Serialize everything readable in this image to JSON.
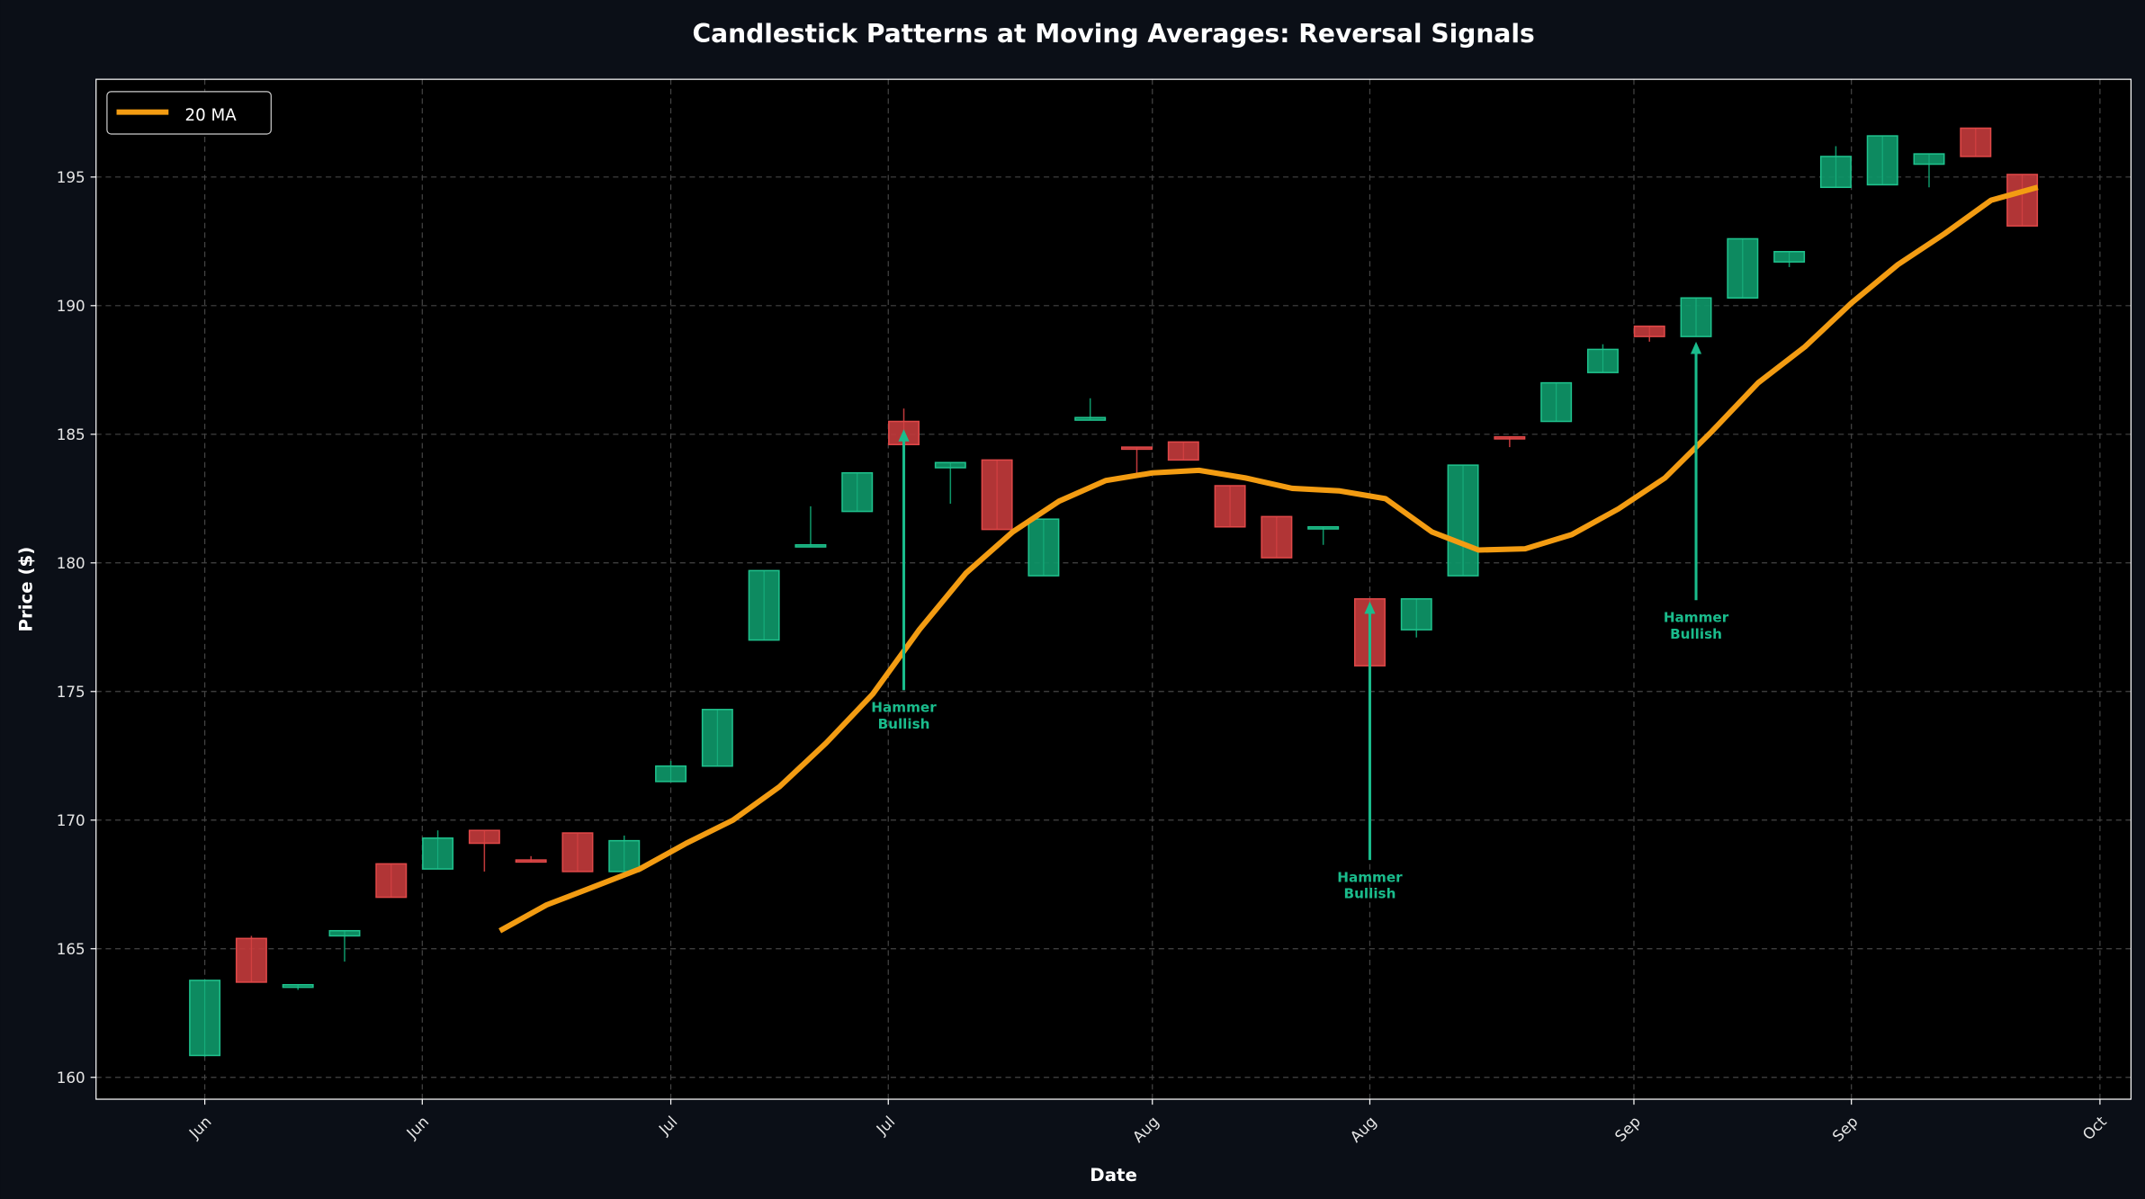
{
  "chart_data": {
    "type": "candlestick",
    "title": "Candlestick Patterns at Moving Averages: Reversal Signals",
    "xlabel": "Date",
    "ylabel": "Price ($)",
    "ylim": [
      159.15,
      198.8
    ],
    "xlim": [
      "May 25",
      "Oct 3"
    ],
    "grid": true,
    "legend_position": "top-left",
    "y_ticks": [
      160,
      165,
      170,
      175,
      180,
      185,
      190,
      195
    ],
    "x_ticks": [
      {
        "date": "Jun 1",
        "label": "Jun"
      },
      {
        "date": "Jun 15",
        "label": "Jun"
      },
      {
        "date": "Jul 1",
        "label": "Jul"
      },
      {
        "date": "Jul 15",
        "label": "Jul"
      },
      {
        "date": "Aug 1",
        "label": "Aug"
      },
      {
        "date": "Aug 15",
        "label": "Aug"
      },
      {
        "date": "Sep 1",
        "label": "Sep"
      },
      {
        "date": "Sep 15",
        "label": "Sep"
      },
      {
        "date": "Oct 1",
        "label": "Oct"
      }
    ],
    "colors": {
      "up": "#0e9668",
      "up_edge": "#1fc28d",
      "down": "#c0393b",
      "down_edge": "#e04848",
      "ma": "#f39c12",
      "annotation": "#1abc8c",
      "plot_bg": "#000000",
      "figure_bg": "#0b0f17"
    },
    "candles": [
      {
        "date": "Jun 1",
        "o": 160.85,
        "h": 163.8,
        "l": 160.8,
        "c": 163.77
      },
      {
        "date": "Jun 4",
        "o": 165.4,
        "h": 165.5,
        "l": 163.7,
        "c": 163.7
      },
      {
        "date": "Jun 7",
        "o": 163.5,
        "h": 163.6,
        "l": 163.4,
        "c": 163.6
      },
      {
        "date": "Jun 10",
        "o": 165.5,
        "h": 165.7,
        "l": 164.5,
        "c": 165.7
      },
      {
        "date": "Jun 13",
        "o": 168.3,
        "h": 168.3,
        "l": 167.0,
        "c": 167.0
      },
      {
        "date": "Jun 16",
        "o": 168.1,
        "h": 169.6,
        "l": 168.1,
        "c": 169.3
      },
      {
        "date": "Jun 19",
        "o": 169.6,
        "h": 169.6,
        "l": 168.0,
        "c": 169.1
      },
      {
        "date": "Jun 22",
        "o": 168.45,
        "h": 168.6,
        "l": 168.4,
        "c": 168.4
      },
      {
        "date": "Jun 25",
        "o": 169.5,
        "h": 169.5,
        "l": 168.0,
        "c": 168.0
      },
      {
        "date": "Jun 28",
        "o": 168.0,
        "h": 169.4,
        "l": 168.0,
        "c": 169.2
      },
      {
        "date": "Jul 1",
        "o": 171.5,
        "h": 172.3,
        "l": 171.5,
        "c": 172.1
      },
      {
        "date": "Jul 4",
        "o": 172.1,
        "h": 174.3,
        "l": 172.1,
        "c": 174.3
      },
      {
        "date": "Jul 7",
        "o": 177.0,
        "h": 179.7,
        "l": 177.0,
        "c": 179.7
      },
      {
        "date": "Jul 10",
        "o": 180.65,
        "h": 182.2,
        "l": 180.65,
        "c": 180.7
      },
      {
        "date": "Jul 13",
        "o": 182.0,
        "h": 183.5,
        "l": 182.0,
        "c": 183.5
      },
      {
        "date": "Jul 16",
        "o": 185.5,
        "h": 186.0,
        "l": 184.6,
        "c": 184.6
      },
      {
        "date": "Jul 19",
        "o": 183.7,
        "h": 183.9,
        "l": 182.3,
        "c": 183.9
      },
      {
        "date": "Jul 22",
        "o": 184.0,
        "h": 184.0,
        "l": 181.3,
        "c": 181.3
      },
      {
        "date": "Jul 25",
        "o": 179.5,
        "h": 181.7,
        "l": 179.5,
        "c": 181.7
      },
      {
        "date": "Jul 28",
        "o": 185.55,
        "h": 186.4,
        "l": 185.55,
        "c": 185.65
      },
      {
        "date": "Jul 31",
        "o": 184.5,
        "h": 184.5,
        "l": 183.4,
        "c": 184.45
      },
      {
        "date": "Aug 3",
        "o": 184.7,
        "h": 184.7,
        "l": 184.0,
        "c": 184.0
      },
      {
        "date": "Aug 6",
        "o": 183.0,
        "h": 183.0,
        "l": 181.4,
        "c": 181.4
      },
      {
        "date": "Aug 9",
        "o": 181.8,
        "h": 181.8,
        "l": 180.2,
        "c": 180.2
      },
      {
        "date": "Aug 12",
        "o": 181.35,
        "h": 181.4,
        "l": 180.7,
        "c": 181.4
      },
      {
        "date": "Aug 15",
        "o": 178.6,
        "h": 178.6,
        "l": 176.0,
        "c": 176.0
      },
      {
        "date": "Aug 18",
        "o": 177.4,
        "h": 178.6,
        "l": 177.1,
        "c": 178.6
      },
      {
        "date": "Aug 21",
        "o": 179.5,
        "h": 183.8,
        "l": 179.5,
        "c": 183.8
      },
      {
        "date": "Aug 24",
        "o": 184.9,
        "h": 184.9,
        "l": 184.5,
        "c": 184.85
      },
      {
        "date": "Aug 27",
        "o": 185.5,
        "h": 187.0,
        "l": 185.5,
        "c": 187.0
      },
      {
        "date": "Aug 30",
        "o": 187.4,
        "h": 188.5,
        "l": 187.4,
        "c": 188.3
      },
      {
        "date": "Sep 2",
        "o": 189.2,
        "h": 189.2,
        "l": 188.6,
        "c": 188.8
      },
      {
        "date": "Sep 5",
        "o": 188.8,
        "h": 190.3,
        "l": 188.8,
        "c": 190.3
      },
      {
        "date": "Sep 8",
        "o": 190.3,
        "h": 192.6,
        "l": 190.3,
        "c": 192.6
      },
      {
        "date": "Sep 11",
        "o": 191.7,
        "h": 192.1,
        "l": 191.5,
        "c": 192.1
      },
      {
        "date": "Sep 14",
        "o": 194.6,
        "h": 196.2,
        "l": 194.6,
        "c": 195.8
      },
      {
        "date": "Sep 17",
        "o": 194.7,
        "h": 196.6,
        "l": 194.7,
        "c": 196.6
      },
      {
        "date": "Sep 20",
        "o": 195.5,
        "h": 195.9,
        "l": 194.6,
        "c": 195.9
      },
      {
        "date": "Sep 23",
        "o": 196.9,
        "h": 196.9,
        "l": 195.8,
        "c": 195.8
      },
      {
        "date": "Sep 26",
        "o": 195.1,
        "h": 195.1,
        "l": 193.1,
        "c": 193.1
      }
    ],
    "series": [
      {
        "name": "20 MA",
        "dates": [
          "Jun 20",
          "Jun 23",
          "Jun 26",
          "Jun 29",
          "Jul 2",
          "Jul 5",
          "Jul 8",
          "Jul 11",
          "Jul 14",
          "Jul 17",
          "Jul 20",
          "Jul 23",
          "Jul 26",
          "Jul 29",
          "Aug 1",
          "Aug 4",
          "Aug 7",
          "Aug 10",
          "Aug 13",
          "Aug 16",
          "Aug 19",
          "Aug 22",
          "Aug 25",
          "Aug 28",
          "Aug 31",
          "Sep 3",
          "Sep 6",
          "Sep 9",
          "Sep 12",
          "Sep 15",
          "Sep 18",
          "Sep 21",
          "Sep 24",
          "Sep 27"
        ],
        "values": [
          165.7,
          166.7,
          167.4,
          168.1,
          169.1,
          170.0,
          171.3,
          173.0,
          174.9,
          177.4,
          179.6,
          181.2,
          182.4,
          183.2,
          183.5,
          183.6,
          183.3,
          182.9,
          182.8,
          182.5,
          181.2,
          180.5,
          180.55,
          181.1,
          182.1,
          183.3,
          185.1,
          187.0,
          188.4,
          190.1,
          191.6,
          192.8,
          194.1,
          194.6
        ]
      }
    ],
    "annotations": [
      {
        "date": "Jul 16",
        "arrow_tip_price": 185.2,
        "text_price": 174.2,
        "line1": "Hammer",
        "line2": "Bullish"
      },
      {
        "date": "Aug 15",
        "arrow_tip_price": 178.5,
        "text_price": 167.6,
        "line1": "Hammer",
        "line2": "Bullish"
      },
      {
        "date": "Sep 5",
        "arrow_tip_price": 188.6,
        "text_price": 177.7,
        "line1": "Hammer",
        "line2": "Bullish"
      }
    ]
  }
}
